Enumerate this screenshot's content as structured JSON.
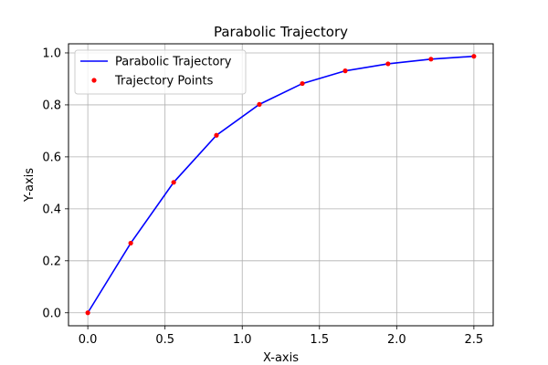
{
  "chart_data": {
    "type": "line",
    "title": "Parabolic Trajectory",
    "xlabel": "X-axis",
    "ylabel": "Y-axis",
    "xlim": [
      -0.125,
      2.625
    ],
    "ylim": [
      -0.05,
      1.035
    ],
    "xticks": [
      0.0,
      0.5,
      1.0,
      1.5,
      2.0,
      2.5
    ],
    "xtick_labels": [
      "0.0",
      "0.5",
      "1.0",
      "1.5",
      "2.0",
      "2.5"
    ],
    "yticks": [
      0.0,
      0.2,
      0.4,
      0.6,
      0.8,
      1.0
    ],
    "ytick_labels": [
      "0.0",
      "0.2",
      "0.4",
      "0.6",
      "0.8",
      "1.0"
    ],
    "grid": true,
    "legend_position": "top-left",
    "x": [
      0.0,
      0.278,
      0.556,
      0.833,
      1.111,
      1.389,
      1.667,
      1.944,
      2.222,
      2.5
    ],
    "series": [
      {
        "name": "Parabolic Trajectory",
        "kind": "line",
        "color": "#0000ff",
        "values": [
          0.0,
          0.268,
          0.502,
          0.683,
          0.802,
          0.882,
          0.931,
          0.958,
          0.976,
          0.987
        ]
      },
      {
        "name": "Trajectory Points",
        "kind": "scatter",
        "color": "#ff0000",
        "values": [
          0.0,
          0.268,
          0.502,
          0.683,
          0.802,
          0.882,
          0.931,
          0.958,
          0.976,
          0.987
        ]
      }
    ]
  }
}
